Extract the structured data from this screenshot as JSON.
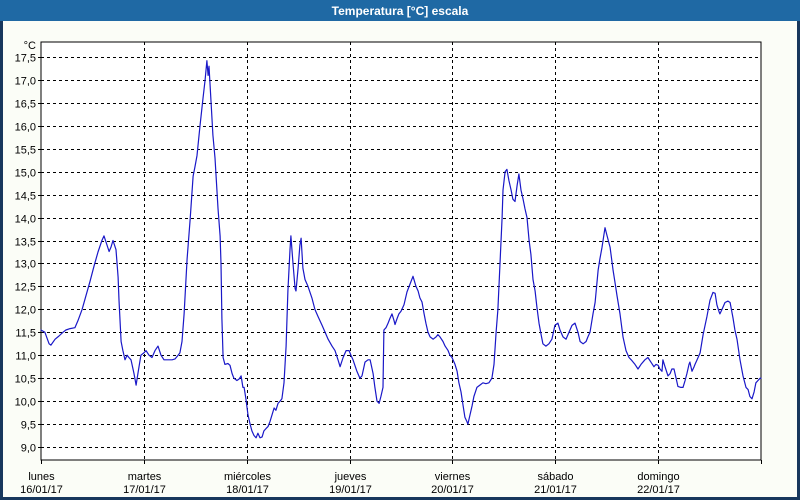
{
  "window": {
    "title": "Temperatura [°C] escala",
    "title_bar_color": "#1f69a4",
    "border_color": "#17375d",
    "content_bg": "#fbfdf7"
  },
  "chart_data": {
    "type": "line",
    "title": "Temperatura [°C] escala",
    "grid": "dashed",
    "legend": "none",
    "line_color": "#1a18c8",
    "y_axis": {
      "label": "°C",
      "min": 9.0,
      "max": 17.5,
      "step": 0.5,
      "decimal_separator": ","
    },
    "x_axis": {
      "total_hours": 168,
      "days": [
        {
          "name": "lunes",
          "date": "16/01/17"
        },
        {
          "name": "martes",
          "date": "17/01/17"
        },
        {
          "name": "miércoles",
          "date": "18/01/17"
        },
        {
          "name": "jueves",
          "date": "19/01/17"
        },
        {
          "name": "viernes",
          "date": "20/01/17"
        },
        {
          "name": "sábado",
          "date": "21/01/17"
        },
        {
          "name": "domingo",
          "date": "22/01/17"
        }
      ]
    },
    "series": [
      {
        "name": "Temperatura",
        "points": [
          [
            0,
            11.55
          ],
          [
            0.9,
            11.5
          ],
          [
            1.9,
            11.25
          ],
          [
            2.3,
            11.22
          ],
          [
            3.3,
            11.35
          ],
          [
            4.2,
            11.42
          ],
          [
            5.1,
            11.5
          ],
          [
            5.8,
            11.55
          ],
          [
            6.8,
            11.58
          ],
          [
            7.9,
            11.6
          ],
          [
            8.6,
            11.75
          ],
          [
            9.6,
            12.0
          ],
          [
            10.5,
            12.3
          ],
          [
            11.4,
            12.6
          ],
          [
            12.4,
            12.95
          ],
          [
            13.3,
            13.25
          ],
          [
            14.2,
            13.5
          ],
          [
            14.7,
            13.6
          ],
          [
            15.4,
            13.4
          ],
          [
            15.9,
            13.26
          ],
          [
            16.3,
            13.35
          ],
          [
            16.8,
            13.5
          ],
          [
            17.5,
            13.3
          ],
          [
            18.0,
            12.7
          ],
          [
            18.2,
            12.2
          ],
          [
            18.7,
            11.3
          ],
          [
            19.1,
            11.1
          ],
          [
            19.6,
            10.9
          ],
          [
            20.1,
            11.0
          ],
          [
            20.5,
            10.95
          ],
          [
            21.0,
            10.9
          ],
          [
            21.7,
            10.6
          ],
          [
            22.2,
            10.35
          ],
          [
            22.6,
            10.6
          ],
          [
            23.3,
            11.0
          ],
          [
            24.0,
            11.05
          ],
          [
            24.5,
            11.1
          ],
          [
            25.2,
            11.0
          ],
          [
            25.9,
            10.95
          ],
          [
            26.6,
            11.1
          ],
          [
            27.3,
            11.2
          ],
          [
            28.0,
            11.0
          ],
          [
            28.7,
            10.9
          ],
          [
            29.6,
            10.9
          ],
          [
            30.6,
            10.9
          ],
          [
            31.3,
            10.92
          ],
          [
            32.0,
            11.0
          ],
          [
            32.4,
            11.05
          ],
          [
            32.9,
            11.3
          ],
          [
            33.4,
            11.9
          ],
          [
            34.1,
            13.1
          ],
          [
            34.8,
            13.95
          ],
          [
            35.5,
            14.9
          ],
          [
            35.9,
            15.1
          ],
          [
            36.4,
            15.35
          ],
          [
            37.1,
            16.0
          ],
          [
            37.8,
            16.6
          ],
          [
            38.3,
            17.0
          ],
          [
            38.7,
            17.42
          ],
          [
            39.0,
            17.1
          ],
          [
            39.2,
            17.3
          ],
          [
            39.7,
            16.5
          ],
          [
            40.1,
            15.8
          ],
          [
            40.6,
            15.3
          ],
          [
            41.3,
            14.2
          ],
          [
            41.8,
            13.6
          ],
          [
            42.0,
            13.0
          ],
          [
            42.2,
            11.8
          ],
          [
            42.5,
            10.95
          ],
          [
            42.9,
            10.8
          ],
          [
            43.6,
            10.82
          ],
          [
            44.1,
            10.78
          ],
          [
            44.6,
            10.6
          ],
          [
            45.0,
            10.5
          ],
          [
            45.7,
            10.45
          ],
          [
            46.2,
            10.48
          ],
          [
            46.7,
            10.55
          ],
          [
            47.1,
            10.3
          ],
          [
            47.4,
            10.3
          ],
          [
            47.8,
            10.05
          ],
          [
            48.3,
            9.7
          ],
          [
            48.8,
            9.5
          ],
          [
            49.2,
            9.35
          ],
          [
            49.7,
            9.25
          ],
          [
            50.2,
            9.2
          ],
          [
            50.6,
            9.3
          ],
          [
            51.1,
            9.2
          ],
          [
            51.6,
            9.22
          ],
          [
            52.0,
            9.35
          ],
          [
            52.5,
            9.4
          ],
          [
            53.0,
            9.45
          ],
          [
            53.4,
            9.55
          ],
          [
            53.9,
            9.7
          ],
          [
            54.4,
            9.85
          ],
          [
            54.8,
            9.8
          ],
          [
            55.3,
            9.95
          ],
          [
            55.8,
            10.0
          ],
          [
            56.2,
            10.05
          ],
          [
            56.7,
            10.4
          ],
          [
            57.2,
            11.2
          ],
          [
            57.6,
            12.4
          ],
          [
            58.1,
            13.3
          ],
          [
            58.3,
            13.6
          ],
          [
            58.8,
            13.0
          ],
          [
            59.3,
            12.45
          ],
          [
            59.5,
            12.4
          ],
          [
            60.0,
            12.9
          ],
          [
            60.4,
            13.4
          ],
          [
            60.7,
            13.55
          ],
          [
            61.1,
            12.9
          ],
          [
            61.6,
            12.65
          ],
          [
            62.3,
            12.5
          ],
          [
            63.2,
            12.25
          ],
          [
            63.9,
            12.0
          ],
          [
            64.6,
            11.85
          ],
          [
            65.6,
            11.65
          ],
          [
            66.3,
            11.5
          ],
          [
            67.0,
            11.35
          ],
          [
            67.9,
            11.2
          ],
          [
            68.6,
            11.1
          ],
          [
            69.3,
            10.9
          ],
          [
            69.8,
            10.75
          ],
          [
            70.5,
            10.95
          ],
          [
            71.2,
            11.1
          ],
          [
            71.9,
            11.1
          ],
          [
            72.3,
            11.0
          ],
          [
            72.8,
            10.9
          ],
          [
            73.7,
            10.65
          ],
          [
            74.4,
            10.5
          ],
          [
            74.9,
            10.55
          ],
          [
            75.6,
            10.85
          ],
          [
            76.3,
            10.9
          ],
          [
            76.8,
            10.9
          ],
          [
            77.5,
            10.6
          ],
          [
            77.9,
            10.3
          ],
          [
            78.4,
            10.0
          ],
          [
            78.9,
            9.95
          ],
          [
            79.3,
            10.1
          ],
          [
            79.8,
            10.3
          ],
          [
            80.0,
            11.55
          ],
          [
            80.5,
            11.6
          ],
          [
            81.0,
            11.7
          ],
          [
            81.4,
            11.8
          ],
          [
            81.9,
            11.9
          ],
          [
            82.4,
            11.75
          ],
          [
            82.6,
            11.67
          ],
          [
            83.1,
            11.8
          ],
          [
            83.5,
            11.9
          ],
          [
            84.0,
            11.96
          ],
          [
            84.7,
            12.1
          ],
          [
            85.4,
            12.38
          ],
          [
            86.1,
            12.55
          ],
          [
            86.8,
            12.72
          ],
          [
            87.5,
            12.5
          ],
          [
            88.0,
            12.4
          ],
          [
            88.4,
            12.25
          ],
          [
            88.9,
            12.16
          ],
          [
            89.4,
            11.9
          ],
          [
            89.8,
            11.7
          ],
          [
            90.3,
            11.5
          ],
          [
            90.8,
            11.4
          ],
          [
            91.5,
            11.35
          ],
          [
            92.2,
            11.4
          ],
          [
            92.6,
            11.45
          ],
          [
            93.1,
            11.4
          ],
          [
            93.8,
            11.3
          ],
          [
            94.3,
            11.2
          ],
          [
            95.0,
            11.1
          ],
          [
            95.4,
            11.0
          ],
          [
            95.9,
            10.95
          ],
          [
            96.6,
            10.8
          ],
          [
            97.1,
            10.65
          ],
          [
            97.5,
            10.4
          ],
          [
            98.0,
            10.2
          ],
          [
            98.5,
            9.9
          ],
          [
            98.9,
            9.65
          ],
          [
            99.4,
            9.55
          ],
          [
            99.6,
            9.5
          ],
          [
            100.1,
            9.7
          ],
          [
            100.6,
            9.9
          ],
          [
            101.0,
            10.1
          ],
          [
            101.7,
            10.3
          ],
          [
            102.4,
            10.35
          ],
          [
            103.1,
            10.4
          ],
          [
            103.8,
            10.38
          ],
          [
            104.5,
            10.4
          ],
          [
            105.2,
            10.5
          ],
          [
            105.7,
            10.8
          ],
          [
            106.2,
            11.5
          ],
          [
            106.6,
            12.0
          ],
          [
            107.1,
            13.0
          ],
          [
            107.6,
            14.0
          ],
          [
            107.8,
            14.6
          ],
          [
            108.3,
            15.0
          ],
          [
            108.7,
            15.05
          ],
          [
            109.2,
            14.8
          ],
          [
            109.7,
            14.6
          ],
          [
            110.1,
            14.4
          ],
          [
            110.6,
            14.35
          ],
          [
            111.1,
            14.7
          ],
          [
            111.5,
            14.95
          ],
          [
            112.0,
            14.6
          ],
          [
            112.5,
            14.4
          ],
          [
            112.9,
            14.2
          ],
          [
            113.4,
            14.0
          ],
          [
            113.9,
            13.5
          ],
          [
            114.3,
            13.2
          ],
          [
            114.8,
            12.65
          ],
          [
            115.3,
            12.4
          ],
          [
            115.7,
            12.05
          ],
          [
            116.2,
            11.7
          ],
          [
            116.7,
            11.45
          ],
          [
            117.1,
            11.25
          ],
          [
            117.8,
            11.2
          ],
          [
            118.5,
            11.25
          ],
          [
            119.2,
            11.35
          ],
          [
            119.9,
            11.65
          ],
          [
            120.6,
            11.7
          ],
          [
            121.1,
            11.55
          ],
          [
            121.8,
            11.4
          ],
          [
            122.5,
            11.35
          ],
          [
            123.2,
            11.5
          ],
          [
            123.9,
            11.65
          ],
          [
            124.6,
            11.7
          ],
          [
            125.3,
            11.5
          ],
          [
            125.8,
            11.3
          ],
          [
            126.5,
            11.25
          ],
          [
            127.2,
            11.3
          ],
          [
            127.6,
            11.4
          ],
          [
            128.1,
            11.5
          ],
          [
            128.8,
            11.9
          ],
          [
            129.3,
            12.15
          ],
          [
            130.0,
            12.85
          ],
          [
            130.4,
            13.1
          ],
          [
            130.9,
            13.35
          ],
          [
            131.6,
            13.78
          ],
          [
            132.1,
            13.6
          ],
          [
            132.8,
            13.35
          ],
          [
            133.5,
            12.85
          ],
          [
            133.9,
            12.6
          ],
          [
            134.4,
            12.3
          ],
          [
            135.1,
            11.9
          ],
          [
            135.8,
            11.4
          ],
          [
            136.5,
            11.1
          ],
          [
            137.2,
            10.95
          ],
          [
            137.9,
            10.88
          ],
          [
            138.6,
            10.8
          ],
          [
            139.3,
            10.7
          ],
          [
            140.0,
            10.8
          ],
          [
            140.9,
            10.9
          ],
          [
            141.6,
            10.95
          ],
          [
            142.3,
            10.85
          ],
          [
            143.0,
            10.75
          ],
          [
            143.5,
            10.8
          ],
          [
            144.0,
            10.78
          ],
          [
            144.4,
            10.7
          ],
          [
            144.9,
            10.65
          ],
          [
            145.1,
            10.9
          ],
          [
            145.6,
            10.75
          ],
          [
            146.3,
            10.55
          ],
          [
            146.8,
            10.6
          ],
          [
            147.2,
            10.7
          ],
          [
            147.7,
            10.7
          ],
          [
            148.2,
            10.5
          ],
          [
            148.6,
            10.32
          ],
          [
            149.3,
            10.3
          ],
          [
            149.8,
            10.3
          ],
          [
            150.3,
            10.45
          ],
          [
            150.7,
            10.6
          ],
          [
            151.2,
            10.8
          ],
          [
            151.4,
            10.85
          ],
          [
            151.9,
            10.65
          ],
          [
            152.4,
            10.75
          ],
          [
            152.6,
            10.8
          ],
          [
            153.1,
            10.9
          ],
          [
            153.8,
            11.05
          ],
          [
            154.5,
            11.45
          ],
          [
            155.4,
            11.85
          ],
          [
            156.1,
            12.2
          ],
          [
            156.8,
            12.37
          ],
          [
            157.3,
            12.35
          ],
          [
            157.7,
            12.1
          ],
          [
            158.2,
            11.95
          ],
          [
            158.4,
            11.9
          ],
          [
            158.9,
            12.0
          ],
          [
            159.6,
            12.15
          ],
          [
            160.3,
            12.18
          ],
          [
            160.8,
            12.15
          ],
          [
            161.5,
            11.8
          ],
          [
            161.9,
            11.55
          ],
          [
            162.4,
            11.35
          ],
          [
            163.1,
            10.9
          ],
          [
            163.8,
            10.55
          ],
          [
            164.5,
            10.3
          ],
          [
            165.0,
            10.25
          ],
          [
            165.4,
            10.1
          ],
          [
            165.9,
            10.05
          ],
          [
            166.4,
            10.2
          ],
          [
            166.8,
            10.4
          ],
          [
            167.3,
            10.45
          ],
          [
            167.8,
            10.5
          ],
          [
            168,
            10.5
          ]
        ]
      }
    ]
  }
}
